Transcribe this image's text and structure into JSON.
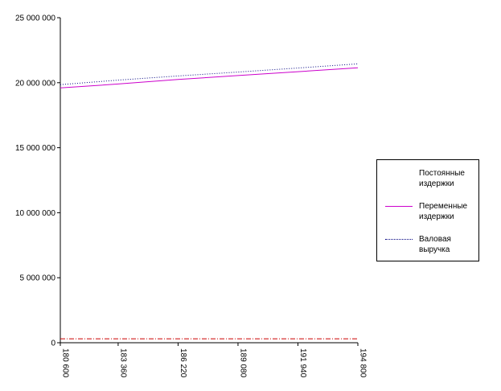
{
  "chart_data": {
    "type": "line",
    "x": [
      "180 600",
      "183 360",
      "186 220",
      "189 080",
      "191 940",
      "194 800"
    ],
    "x_values": [
      180600,
      183360,
      186220,
      189080,
      191940,
      194800
    ],
    "ylim": [
      0,
      25000000
    ],
    "yticks": [
      0,
      5000000,
      10000000,
      15000000,
      20000000,
      25000000
    ],
    "ytick_labels": [
      "0",
      "5 000 000",
      "10 000 000",
      "15 000 000",
      "20 000 000",
      "25 000 000"
    ],
    "grid": false,
    "legend_position": "right",
    "series": [
      {
        "name": "Постоянные издержки",
        "values": [
          300000,
          300000,
          300000,
          300000,
          300000,
          300000
        ],
        "color": "#cc0000",
        "style": "dash-dot"
      },
      {
        "name": "Переменные издержки",
        "values": [
          19600000,
          19900000,
          20250000,
          20550000,
          20850000,
          21150000
        ],
        "color": "#cc00cc",
        "style": "solid"
      },
      {
        "name": "Валовая выручка",
        "values": [
          19850000,
          20200000,
          20520000,
          20820000,
          21130000,
          21450000
        ],
        "color": "#000080",
        "style": "dotted"
      }
    ],
    "legend": {
      "items": [
        {
          "line1": "Постоянные",
          "line2": "издержки"
        },
        {
          "line1": "Переменные",
          "line2": "издержки"
        },
        {
          "line1": "Валовая",
          "line2": "выручка"
        }
      ]
    }
  }
}
